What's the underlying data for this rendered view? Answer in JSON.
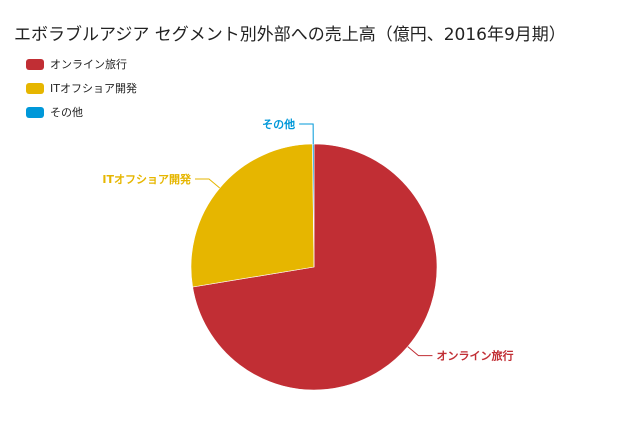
{
  "chart_data": {
    "type": "pie",
    "title": "エボラブルアジア セグメント別外部への売上高（億円、2016年9月期）",
    "legend_position": "top-left",
    "categories": [
      "オンライン旅行",
      "ITオフショア開発",
      "その他"
    ],
    "values": [
      72.4,
      27.4,
      0.2
    ],
    "colors": [
      "#c12e34",
      "#e6b600",
      "#0098d9"
    ]
  }
}
